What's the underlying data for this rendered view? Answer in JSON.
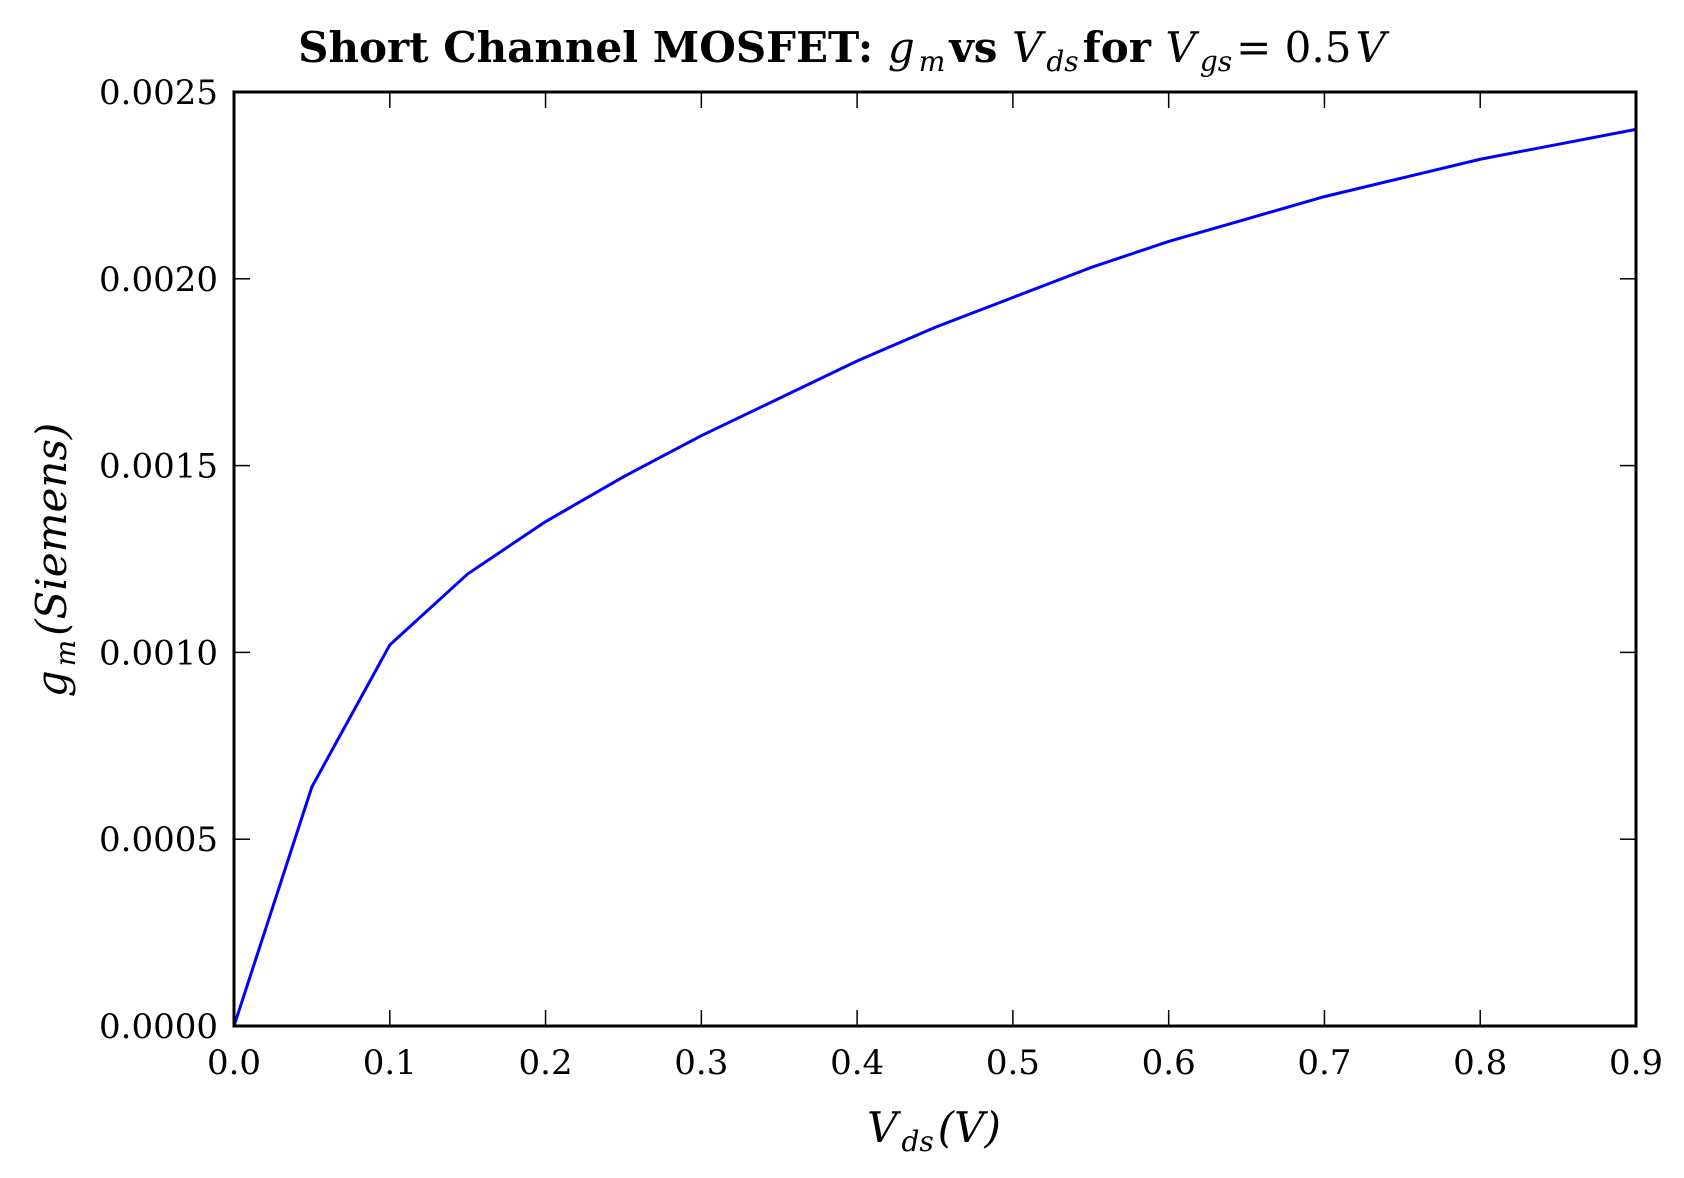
{
  "chart_data": {
    "type": "line",
    "title": {
      "prefix": "Short Channel MOSFET: ",
      "sym1": "g",
      "sym1_sub": "m",
      "mid1": " vs ",
      "sym2": "V",
      "sym2_sub": "ds",
      "mid2": " for ",
      "sym3": "V",
      "sym3_sub": "gs",
      "tail": " = 0.5",
      "tail_sym": "V"
    },
    "xlabel": {
      "sym": "V",
      "sub": "ds",
      "rest": "(V)"
    },
    "ylabel": {
      "sym": "g",
      "sub": "m",
      "rest": "(Siemens)"
    },
    "xlim": [
      0.0,
      0.9
    ],
    "ylim": [
      0.0,
      0.0025
    ],
    "xticks": [
      {
        "value": 0.0,
        "label": "0.0"
      },
      {
        "value": 0.1,
        "label": "0.1"
      },
      {
        "value": 0.2,
        "label": "0.2"
      },
      {
        "value": 0.3,
        "label": "0.3"
      },
      {
        "value": 0.4,
        "label": "0.4"
      },
      {
        "value": 0.5,
        "label": "0.5"
      },
      {
        "value": 0.6,
        "label": "0.6"
      },
      {
        "value": 0.7,
        "label": "0.7"
      },
      {
        "value": 0.8,
        "label": "0.8"
      },
      {
        "value": 0.9,
        "label": "0.9"
      }
    ],
    "yticks": [
      {
        "value": 0.0,
        "label": "0.0000"
      },
      {
        "value": 0.0005,
        "label": "0.0005"
      },
      {
        "value": 0.001,
        "label": "0.0010"
      },
      {
        "value": 0.0015,
        "label": "0.0015"
      },
      {
        "value": 0.002,
        "label": "0.0020"
      },
      {
        "value": 0.0025,
        "label": "0.0025"
      }
    ],
    "grid": false,
    "series": [
      {
        "color": "#0000ff",
        "x": [
          0.0,
          0.05,
          0.1,
          0.15,
          0.2,
          0.25,
          0.3,
          0.35,
          0.4,
          0.45,
          0.5,
          0.55,
          0.6,
          0.65,
          0.7,
          0.75,
          0.8,
          0.85,
          0.9
        ],
        "y": [
          0.0,
          0.00064,
          0.00102,
          0.00121,
          0.00135,
          0.00147,
          0.00158,
          0.00168,
          0.00178,
          0.00187,
          0.00195,
          0.00203,
          0.0021,
          0.00216,
          0.00222,
          0.00227,
          0.00232,
          0.00236,
          0.0024
        ]
      }
    ]
  }
}
